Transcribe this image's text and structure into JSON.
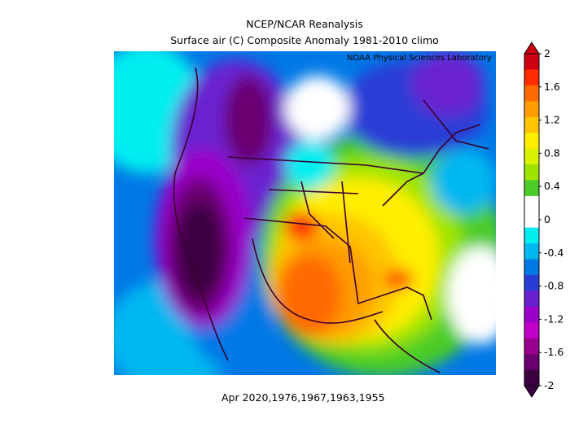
{
  "header": {
    "title_line1": "NCEP/NCAR Reanalysis",
    "title_line2": "Surface air (C) Composite Anomaly 1981-2010 climo",
    "credit": "NOAA Physical Sciences Laboratory"
  },
  "footer": {
    "years": "Apr 2020,1976,1967,1963,1955"
  },
  "colorbar": {
    "labels": [
      "2",
      "1.6",
      "1.2",
      "0.8",
      "0.4",
      "0",
      "-0.4",
      "-0.8",
      "-1.2",
      "-1.6",
      "-2"
    ],
    "colors": [
      "#cc0010",
      "#ff2a00",
      "#ff6a00",
      "#ff9c00",
      "#ffc400",
      "#ffee00",
      "#d8f200",
      "#9ee400",
      "#4ccc26",
      "#ffffff",
      "#ffffff",
      "#00eef0",
      "#00b8f0",
      "#0078e6",
      "#2a3cd6",
      "#6a20d0",
      "#9a00c8",
      "#c000c8",
      "#9a0090",
      "#6a0070",
      "#3a0040"
    ]
  },
  "map": {
    "region": "North America",
    "field": "Surface air temperature anomaly",
    "units": "C"
  }
}
